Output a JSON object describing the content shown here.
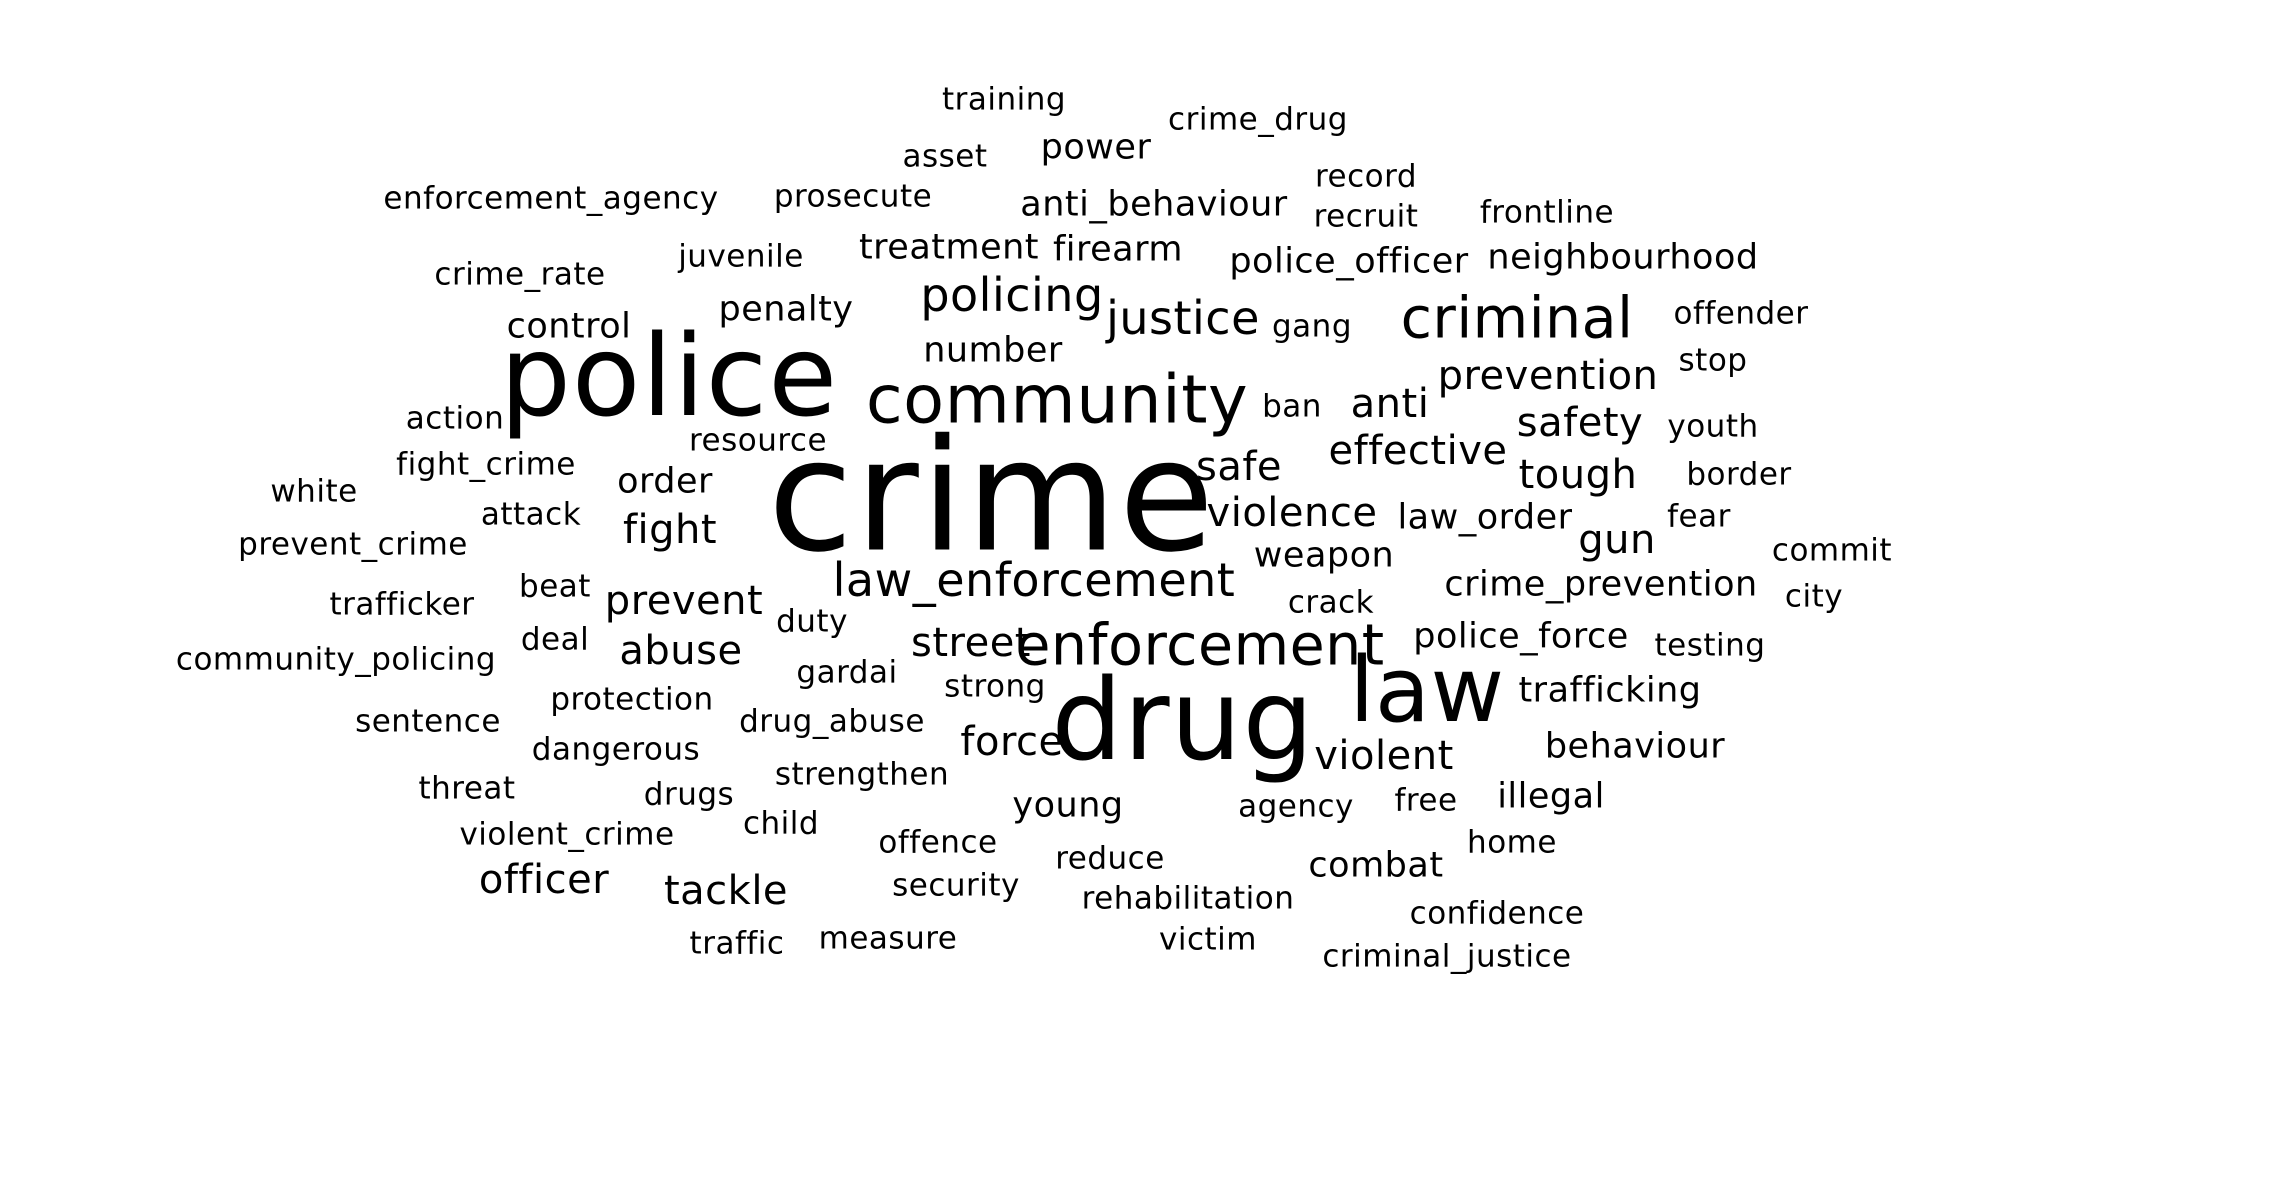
{
  "wordcloud": {
    "text_color": "#000000",
    "background": "#ffffff",
    "words": [
      {
        "text": "crime"
      },
      {
        "text": "police"
      },
      {
        "text": "drug"
      },
      {
        "text": "community"
      },
      {
        "text": "law"
      },
      {
        "text": "criminal"
      },
      {
        "text": "enforcement"
      },
      {
        "text": "law_enforcement"
      },
      {
        "text": "policing"
      },
      {
        "text": "justice"
      },
      {
        "text": "prevention"
      },
      {
        "text": "violence"
      },
      {
        "text": "effective"
      },
      {
        "text": "safe"
      },
      {
        "text": "anti"
      },
      {
        "text": "safety"
      },
      {
        "text": "tough"
      },
      {
        "text": "gun"
      },
      {
        "text": "fight"
      },
      {
        "text": "prevent"
      },
      {
        "text": "abuse"
      },
      {
        "text": "street"
      },
      {
        "text": "force"
      },
      {
        "text": "violent"
      },
      {
        "text": "behaviour"
      },
      {
        "text": "crime_prevention"
      },
      {
        "text": "tackle"
      },
      {
        "text": "officer"
      },
      {
        "text": "illegal"
      },
      {
        "text": "combat"
      },
      {
        "text": "penalty"
      },
      {
        "text": "neighbourhood"
      },
      {
        "text": "anti_behaviour"
      },
      {
        "text": "firearm"
      },
      {
        "text": "treatment"
      },
      {
        "text": "police_officer"
      },
      {
        "text": "number"
      },
      {
        "text": "power"
      },
      {
        "text": "young"
      },
      {
        "text": "trafficking"
      },
      {
        "text": "police_force"
      },
      {
        "text": "law_order"
      },
      {
        "text": "weapon"
      },
      {
        "text": "order"
      },
      {
        "text": "control"
      },
      {
        "text": "juvenile"
      },
      {
        "text": "prosecute"
      },
      {
        "text": "record"
      },
      {
        "text": "recruit"
      },
      {
        "text": "crime_drug"
      },
      {
        "text": "training"
      },
      {
        "text": "asset"
      },
      {
        "text": "enforcement_agency"
      },
      {
        "text": "crime_rate"
      },
      {
        "text": "frontline"
      },
      {
        "text": "offender"
      },
      {
        "text": "stop"
      },
      {
        "text": "gang"
      },
      {
        "text": "ban"
      },
      {
        "text": "youth"
      },
      {
        "text": "border"
      },
      {
        "text": "fear"
      },
      {
        "text": "commit"
      },
      {
        "text": "city"
      },
      {
        "text": "testing"
      },
      {
        "text": "resource"
      },
      {
        "text": "action"
      },
      {
        "text": "fight_crime"
      },
      {
        "text": "white"
      },
      {
        "text": "attack"
      },
      {
        "text": "prevent_crime"
      },
      {
        "text": "trafficker"
      },
      {
        "text": "beat"
      },
      {
        "text": "deal"
      },
      {
        "text": "duty"
      },
      {
        "text": "community_policing"
      },
      {
        "text": "gardai"
      },
      {
        "text": "strong"
      },
      {
        "text": "protection"
      },
      {
        "text": "sentence"
      },
      {
        "text": "drug_abuse"
      },
      {
        "text": "dangerous"
      },
      {
        "text": "strengthen"
      },
      {
        "text": "threat"
      },
      {
        "text": "drugs"
      },
      {
        "text": "child"
      },
      {
        "text": "violent_crime"
      },
      {
        "text": "offence"
      },
      {
        "text": "reduce"
      },
      {
        "text": "security"
      },
      {
        "text": "rehabilitation"
      },
      {
        "text": "traffic"
      },
      {
        "text": "measure"
      },
      {
        "text": "victim"
      },
      {
        "text": "confidence"
      },
      {
        "text": "criminal_justice"
      },
      {
        "text": "agency"
      },
      {
        "text": "free"
      },
      {
        "text": "home"
      },
      {
        "text": "crack"
      }
    ]
  }
}
